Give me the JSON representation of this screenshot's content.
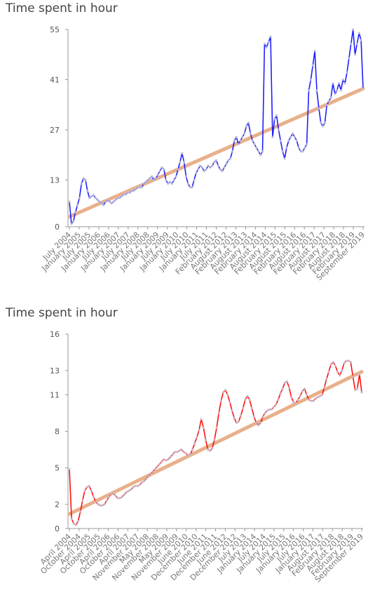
{
  "chart_data": [
    {
      "type": "line",
      "title": "Time spent in hour",
      "ylim": [
        0,
        55
      ],
      "yticks": [
        0,
        13,
        27,
        41,
        55
      ],
      "grid": false,
      "colors": {
        "series": "#2020ff",
        "trend": "#e8b08a",
        "points": "#c8c8d8"
      },
      "x_tick_labels": [
        "July 2004",
        "January 2005",
        "July 2005",
        "January 2006",
        "July 2006",
        "January 2007",
        "July 2007",
        "January 2008",
        "July 2008",
        "January 2009",
        "July 2009",
        "January 2010",
        "July 2010",
        "January 2011",
        "July 2011",
        "February 2012",
        "August 2012",
        "February 2013",
        "August 2013",
        "February 2014",
        "August 2014",
        "February 2015",
        "August 2015",
        "February 2016",
        "August 2016",
        "February 2017",
        "August 2017",
        "February 2018",
        "August 2018",
        "February 2019",
        "September 2019"
      ],
      "series": [
        {
          "values": [
            7,
            0.8,
            1.5,
            4,
            6,
            8,
            12,
            13.5,
            13,
            10,
            8,
            8.5,
            8.8,
            8,
            7.5,
            7,
            6.5,
            6,
            7,
            7.5,
            7,
            6.5,
            7,
            7.5,
            8,
            8,
            8.5,
            9,
            9,
            9.5,
            9.5,
            10,
            10,
            10.5,
            11,
            11,
            11,
            12,
            12.5,
            13,
            13.5,
            14,
            13,
            13.5,
            14.5,
            15.5,
            16.5,
            16,
            13,
            12,
            12.5,
            12,
            13,
            14,
            16,
            18,
            20.5,
            18,
            14,
            12,
            11,
            11,
            13,
            15,
            16,
            17,
            16.5,
            15.5,
            16,
            17,
            16.5,
            17,
            18,
            18.5,
            17,
            16,
            15.5,
            16.5,
            17.5,
            18.5,
            19,
            21,
            24,
            25,
            23,
            24,
            25,
            26,
            28,
            29,
            26,
            24,
            23,
            22,
            21,
            20,
            21,
            51,
            50,
            51.5,
            53,
            25,
            30,
            31,
            27,
            24,
            21,
            19,
            22,
            24,
            25,
            26,
            25,
            24,
            22,
            21,
            21,
            22,
            23,
            38,
            41,
            45,
            49,
            38,
            33,
            29,
            28,
            29,
            34,
            35,
            36,
            40,
            37,
            38,
            40,
            38,
            41,
            40,
            43,
            47,
            51,
            55,
            48,
            51,
            54,
            52,
            38.5
          ]
        },
        {
          "name": "trend",
          "values": [
            2.8,
            38.5
          ]
        }
      ]
    },
    {
      "type": "line",
      "title": "Time spent in hour",
      "ylim": [
        0,
        16
      ],
      "yticks": [
        0,
        2,
        5,
        8,
        11,
        13,
        16
      ],
      "grid": false,
      "colors": {
        "series": "#ff1010",
        "trend": "#e8b08a",
        "points": "#c8c8d8"
      },
      "x_tick_labels": [
        "April 2004",
        "October 2004",
        "April 2005",
        "October 2005",
        "April 2006",
        "October 2006",
        "April 2007",
        "November 2007",
        "May 2008",
        "November 2008",
        "May 2009",
        "November 2009",
        "June 2010",
        "December 2010",
        "June 2011",
        "December 2011",
        "June 2012",
        "December 2012",
        "July 2013",
        "January 2014",
        "July 2014",
        "January 2015",
        "July 2015",
        "January 2016",
        "July 2016",
        "January 2017",
        "August 2017",
        "February 2018",
        "August 2018",
        "February 2019",
        "September 2019"
      ],
      "series": [
        {
          "values": [
            4.9,
            0.8,
            0.4,
            0.3,
            0.6,
            1.4,
            2.3,
            3.1,
            3.4,
            3.5,
            3.1,
            2.6,
            2.2,
            2.0,
            1.9,
            1.9,
            2.0,
            2.3,
            2.6,
            2.8,
            2.9,
            2.7,
            2.5,
            2.5,
            2.6,
            2.8,
            3.0,
            3.1,
            3.2,
            3.4,
            3.5,
            3.5,
            3.6,
            3.8,
            3.9,
            4.1,
            4.3,
            4.5,
            4.7,
            4.9,
            5.1,
            5.3,
            5.5,
            5.7,
            5.6,
            5.7,
            5.9,
            6.1,
            6.3,
            6.3,
            6.4,
            6.5,
            6.3,
            6.2,
            6.0,
            6.1,
            6.5,
            7.0,
            7.5,
            8.1,
            9.0,
            8.3,
            7.3,
            6.5,
            6.4,
            6.6,
            7.3,
            8.3,
            9.5,
            10.5,
            11.2,
            11.4,
            11.0,
            10.4,
            9.7,
            9.1,
            8.7,
            8.8,
            9.3,
            9.9,
            10.6,
            10.9,
            10.6,
            9.9,
            9.2,
            8.7,
            8.5,
            8.7,
            9.2,
            9.5,
            9.7,
            9.8,
            9.8,
            10.0,
            10.2,
            10.6,
            11.1,
            11.5,
            12.0,
            12.1,
            11.6,
            10.8,
            10.4,
            10.3,
            10.6,
            10.9,
            11.3,
            11.5,
            11.0,
            10.6,
            10.5,
            10.5,
            10.7,
            10.8,
            10.9,
            11.0,
            11.6,
            12.3,
            12.9,
            13.5,
            13.7,
            13.4,
            12.9,
            12.6,
            13.0,
            13.6,
            13.8,
            13.8,
            13.7,
            12.5,
            11.4,
            11.5,
            12.7,
            11.2
          ]
        },
        {
          "name": "trend",
          "values": [
            1.2,
            12.9
          ]
        }
      ]
    }
  ]
}
